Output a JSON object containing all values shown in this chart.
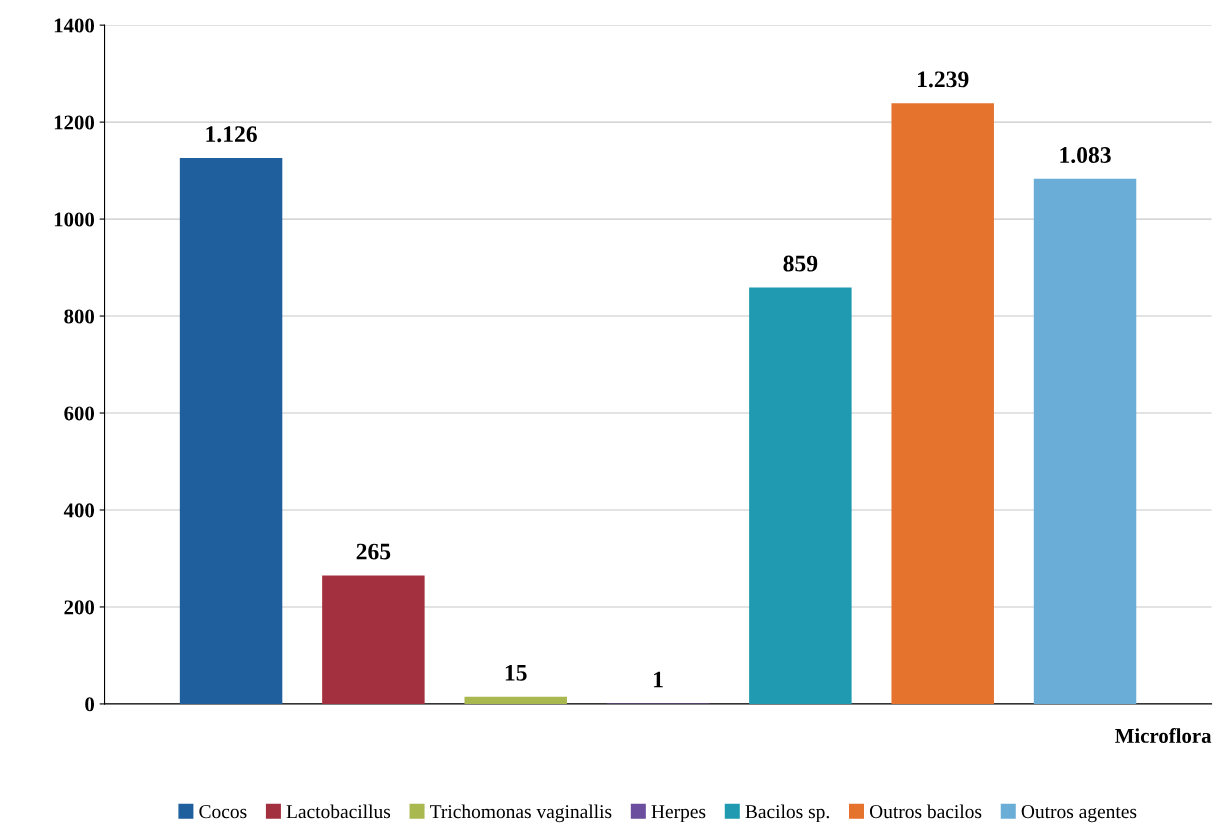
{
  "chart_data": {
    "type": "bar",
    "categories": [
      null
    ],
    "xlabel": "Microflora",
    "series": [
      {
        "name": "Cocos",
        "color": "#1f5f9e",
        "values": [
          1126
        ],
        "value_labels": [
          "1.126"
        ]
      },
      {
        "name": "Lactobacillus",
        "color": "#a3303f",
        "values": [
          265
        ],
        "value_labels": [
          "265"
        ]
      },
      {
        "name": "Trichomonas vaginallis",
        "color": "#a9b84f",
        "values": [
          15
        ],
        "value_labels": [
          "15"
        ]
      },
      {
        "name": "Herpes",
        "color": "#6b4f9e",
        "values": [
          1
        ],
        "value_labels": [
          "1"
        ]
      },
      {
        "name": "Bacilos sp.",
        "color": "#1f9ab0",
        "values": [
          859
        ],
        "value_labels": [
          "859"
        ]
      },
      {
        "name": "Outros bacilos",
        "color": "#e5722d",
        "values": [
          1239
        ],
        "value_labels": [
          "1.239"
        ]
      },
      {
        "name": "Outros agentes",
        "color": "#6aaed8",
        "values": [
          1083
        ],
        "value_labels": [
          "1.083"
        ]
      }
    ],
    "ylim": [
      0,
      1400
    ],
    "yticks": [
      0,
      200,
      400,
      600,
      800,
      1000,
      1200,
      1400
    ],
    "grid": "y",
    "legend": "bottom"
  }
}
